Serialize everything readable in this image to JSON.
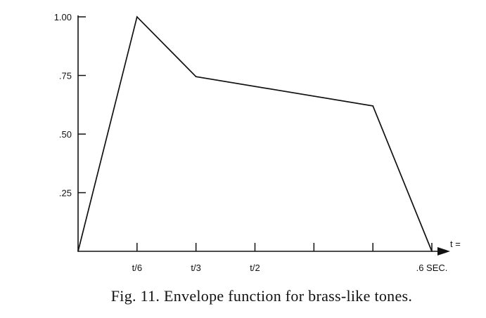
{
  "chart_data": {
    "type": "line",
    "caption": "Fig. 11. Envelope function for brass-like tones.",
    "x_axis": {
      "range": [
        0,
        0.6
      ],
      "end_label": "t =",
      "ticks": [
        {
          "value": 0.1,
          "label": "t/6"
        },
        {
          "value": 0.2,
          "label": "t/3"
        },
        {
          "value": 0.3,
          "label": "t/2"
        },
        {
          "value": 0.4,
          "label": ""
        },
        {
          "value": 0.5,
          "label": ""
        },
        {
          "value": 0.6,
          "label": ".6 SEC."
        }
      ]
    },
    "y_axis": {
      "range": [
        0,
        1.0
      ],
      "ticks": [
        {
          "value": 0.25,
          "label": ".25"
        },
        {
          "value": 0.5,
          "label": ".50"
        },
        {
          "value": 0.75,
          "label": ".75"
        },
        {
          "value": 1.0,
          "label": "1.00"
        }
      ]
    },
    "series": [
      {
        "x": [
          0,
          0.1,
          0.2,
          0.5,
          0.6
        ],
        "y": [
          0,
          1.0,
          0.745,
          0.62,
          0
        ]
      }
    ],
    "grid": false,
    "legend": "none",
    "colors": {
      "line": "#111111",
      "axis": "#111111",
      "text": "#111111"
    }
  }
}
